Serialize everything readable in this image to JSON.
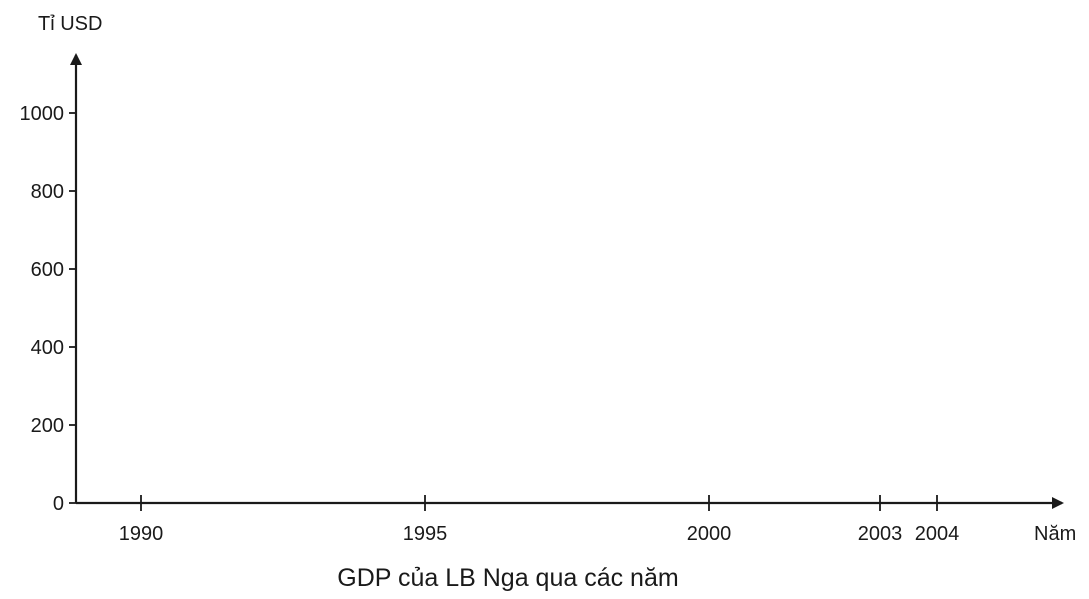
{
  "chart_data": {
    "type": "line",
    "title": "GDP của LB Nga qua các năm",
    "xlabel": "Năm",
    "ylabel": "Tỉ USD",
    "x": [
      1990,
      1995,
      2000,
      2003,
      2004
    ],
    "x_tick_labels": [
      "1990",
      "1995",
      "2000",
      "2003",
      "2004"
    ],
    "y_ticks": [
      0,
      200,
      400,
      600,
      800,
      1000
    ],
    "y_tick_labels": [
      "0",
      "200",
      "400",
      "600",
      "800",
      "1000"
    ],
    "ylim": [
      0,
      1000
    ],
    "series": [],
    "grid": false,
    "legend": "none",
    "colors": {
      "axis": "#1a1a1a",
      "text": "#1a1a1a",
      "background": "#ffffff"
    }
  }
}
